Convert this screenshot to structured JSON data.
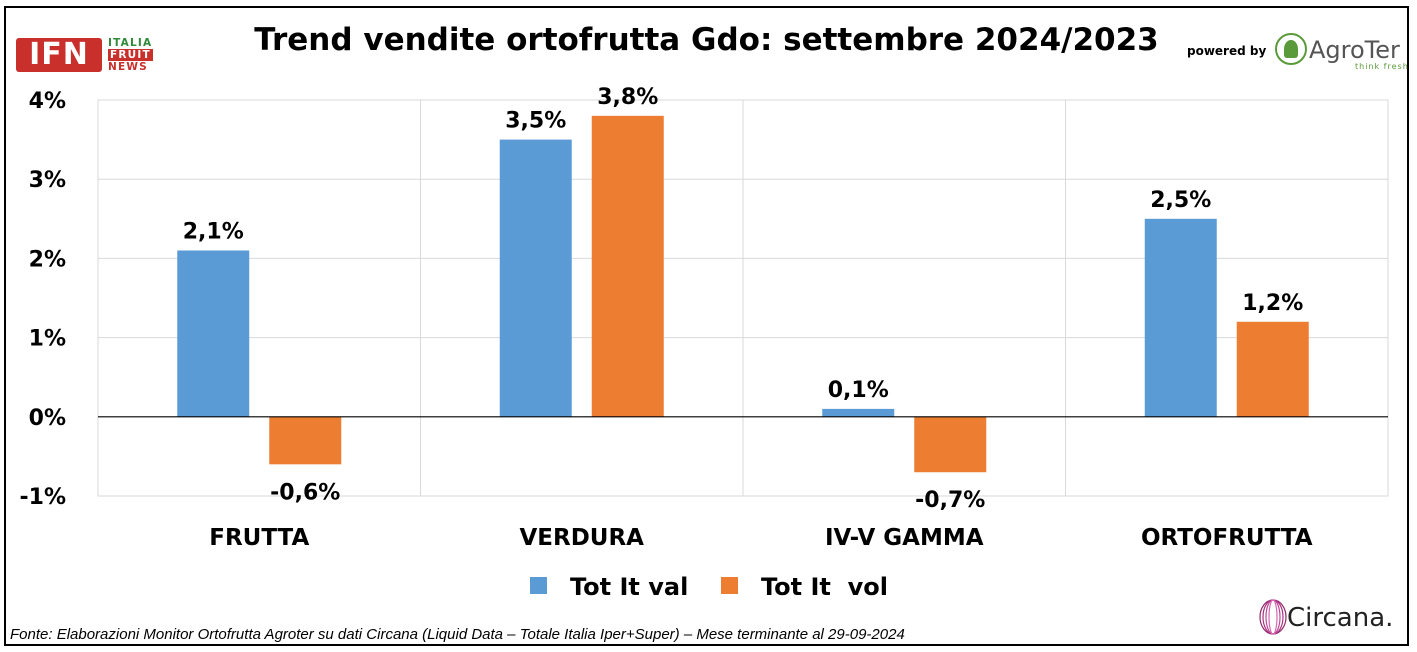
{
  "title": "Trend vendite ortofrutta Gdo: settembre 2024/2023",
  "logos": {
    "ifn": {
      "main": "IFN",
      "line1": "ITALIA",
      "line2": "FRUIT",
      "line3": "NEWS"
    },
    "powered_by": "powered by",
    "agroter": {
      "name": "AgroTer",
      "tagline": "think fresh",
      "icon": "leaf-tree-icon"
    },
    "circana": {
      "name": "Circana.",
      "icon": "circana-swirl-icon"
    }
  },
  "source": "Fonte: Elaborazioni Monitor Ortofrutta Agroter su dati Circana (Liquid Data – Totale Italia Iper+Super) – Mese terminante al 29-09-2024",
  "chart_data": {
    "type": "bar",
    "title": "Trend vendite ortofrutta Gdo: settembre 2024/2023",
    "categories": [
      "FRUTTA",
      "VERDURA",
      "IV-V GAMMA",
      "ORTOFRUTTA"
    ],
    "series": [
      {
        "name": "Tot It val",
        "color": "#5b9bd5",
        "values": [
          2.1,
          3.5,
          0.1,
          2.5
        ],
        "labels": [
          "2,1%",
          "3,5%",
          "0,1%",
          "2,5%"
        ]
      },
      {
        "name": "Tot It  vol",
        "color": "#ed7d31",
        "values": [
          -0.6,
          3.8,
          -0.7,
          1.2
        ],
        "labels": [
          "-0,6%",
          "3,8%",
          "-0,7%",
          "1,2%"
        ]
      }
    ],
    "ylim": [
      -1,
      4
    ],
    "yticks": [
      {
        "value": 4,
        "label": "4%"
      },
      {
        "value": 3,
        "label": "3%"
      },
      {
        "value": 2,
        "label": "2%"
      },
      {
        "value": 1,
        "label": "1%"
      },
      {
        "value": 0,
        "label": "0%"
      },
      {
        "value": -1,
        "label": "-1%"
      }
    ],
    "grid": true,
    "legend": "bottom"
  }
}
